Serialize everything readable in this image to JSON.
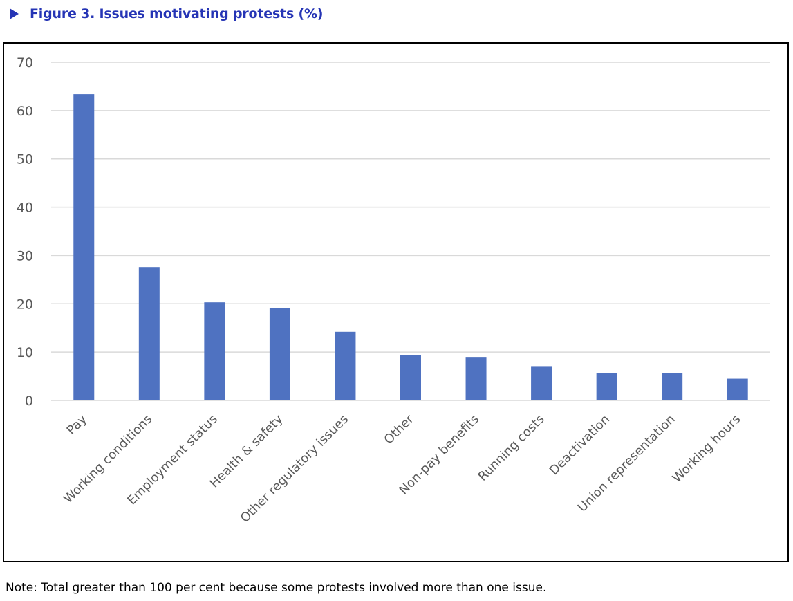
{
  "figure": {
    "title": "Figure 3. Issues motivating protests (%)",
    "note": "Note: Total greater than 100 per cent because some protests involved more than one issue.",
    "accent_color": "#2534b5",
    "marker_icon": "triangle-right-icon"
  },
  "chart_data": {
    "type": "bar",
    "title": "",
    "xlabel": "",
    "ylabel": "",
    "categories": [
      "Pay",
      "Working conditions",
      "Employment status",
      "Health & safety",
      "Other regulatory issues",
      "Other",
      "Non-pay benefits",
      "Running costs",
      "Deactivation",
      "Union representation",
      "Working hours"
    ],
    "values": [
      63.4,
      27.6,
      20.3,
      19.1,
      14.2,
      9.4,
      9.0,
      7.1,
      5.7,
      5.6,
      4.5
    ],
    "ylim": [
      0,
      70
    ],
    "yticks": [
      0,
      10,
      20,
      30,
      40,
      50,
      60,
      70
    ],
    "grid": true,
    "legend": "none",
    "bar_color": "#4f72c1",
    "grid_color": "#d9d9d9",
    "tick_label_color": "#595959"
  }
}
